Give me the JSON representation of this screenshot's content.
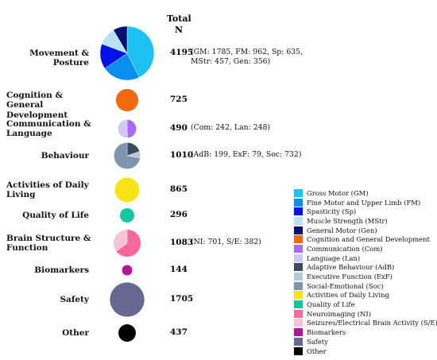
{
  "header": {
    "total_label_1": "Total",
    "total_label_2": "N"
  },
  "chart_data": {
    "type": "pie",
    "rows": [
      {
        "label": [
          "Movement & Posture"
        ],
        "total": "4195",
        "detail": [
          "(GM: 1785, FM: 962, Sp: 635,",
          "MStr: 457, Gen: 356)"
        ],
        "slices": [
          {
            "code": "GM",
            "value": 1785
          },
          {
            "code": "FM",
            "value": 962
          },
          {
            "code": "Sp",
            "value": 635
          },
          {
            "code": "MStr",
            "value": 457
          },
          {
            "code": "Gen",
            "value": 356
          }
        ]
      },
      {
        "label": [
          "Cognition & General",
          "Development"
        ],
        "total": "725",
        "detail": [],
        "slices": [
          {
            "code": "Cog",
            "value": 725
          }
        ]
      },
      {
        "label": [
          "Communication &",
          "Language"
        ],
        "total": "490",
        "detail": [
          "(Com: 242, Lan: 248)"
        ],
        "slices": [
          {
            "code": "Com",
            "value": 242
          },
          {
            "code": "Lan",
            "value": 248
          }
        ]
      },
      {
        "label": [
          "Behaviour"
        ],
        "total": "1010",
        "detail": [
          "(AdB: 199, ExF: 79, Soc: 732)"
        ],
        "slices": [
          {
            "code": "AdB",
            "value": 199
          },
          {
            "code": "ExF",
            "value": 79
          },
          {
            "code": "Soc",
            "value": 732
          }
        ]
      },
      {
        "label": [
          "Activities of Daily",
          "Living"
        ],
        "total": "865",
        "detail": [],
        "slices": [
          {
            "code": "ADL",
            "value": 865
          }
        ]
      },
      {
        "label": [
          "Quality of Life"
        ],
        "total": "296",
        "detail": [],
        "slices": [
          {
            "code": "QoL",
            "value": 296
          }
        ]
      },
      {
        "label": [
          "Brain Structure &",
          "Function"
        ],
        "total": "1083",
        "detail": [
          "(NI: 701, S/E: 382)"
        ],
        "slices": [
          {
            "code": "NI",
            "value": 701
          },
          {
            "code": "S/E",
            "value": 382
          }
        ]
      },
      {
        "label": [
          "Biomarkers"
        ],
        "total": "144",
        "detail": [],
        "slices": [
          {
            "code": "Bio",
            "value": 144
          }
        ]
      },
      {
        "label": [
          "Safety"
        ],
        "total": "1705",
        "detail": [],
        "slices": [
          {
            "code": "Saf",
            "value": 1705
          }
        ]
      },
      {
        "label": [
          "Other"
        ],
        "total": "437",
        "detail": [],
        "slices": [
          {
            "code": "Oth",
            "value": 437
          }
        ]
      }
    ],
    "legend": [
      {
        "code": "GM",
        "label": "Gross Motor (GM)",
        "color": "#1ec1f3"
      },
      {
        "code": "FM",
        "label": "Fine Motor and Upper Limb (FM)",
        "color": "#0a8ff0"
      },
      {
        "code": "Sp",
        "label": "Spasticity (Sp)",
        "color": "#0012e8"
      },
      {
        "code": "MStr",
        "label": "Muscle Strength (MStr)",
        "color": "#b9e2f6"
      },
      {
        "code": "Gen",
        "label": "General Motor (Gen)",
        "color": "#06106e"
      },
      {
        "code": "Cog",
        "label": "Cognition and General Development",
        "color": "#f26a10"
      },
      {
        "code": "Com",
        "label": "Communication (Com)",
        "color": "#a66cf3"
      },
      {
        "code": "Lan",
        "label": "Language (Lan)",
        "color": "#d1c9f5"
      },
      {
        "code": "AdB",
        "label": "Adaptive Behaviour (AdB)",
        "color": "#3a4d60"
      },
      {
        "code": "ExF",
        "label": "Executive Function (ExF)",
        "color": "#b7c8d9"
      },
      {
        "code": "Soc",
        "label": "Social-Emotional (Soc)",
        "color": "#7d95ae"
      },
      {
        "code": "ADL",
        "label": "Activities of Daily Living",
        "color": "#f7e417"
      },
      {
        "code": "QoL",
        "label": "Quality of Life",
        "color": "#12c6a0"
      },
      {
        "code": "NI",
        "label": "Neuroimaging (NI)",
        "color": "#f9679d"
      },
      {
        "code": "S/E",
        "label": "Seizures/Electrical Brain Activity (S/E)",
        "color": "#f7c3d6"
      },
      {
        "code": "Bio",
        "label": "Biomarkers",
        "color": "#b1159a"
      },
      {
        "code": "Saf",
        "label": "Safety",
        "color": "#666894"
      },
      {
        "code": "Oth",
        "label": "Other",
        "color": "#000000"
      }
    ]
  }
}
